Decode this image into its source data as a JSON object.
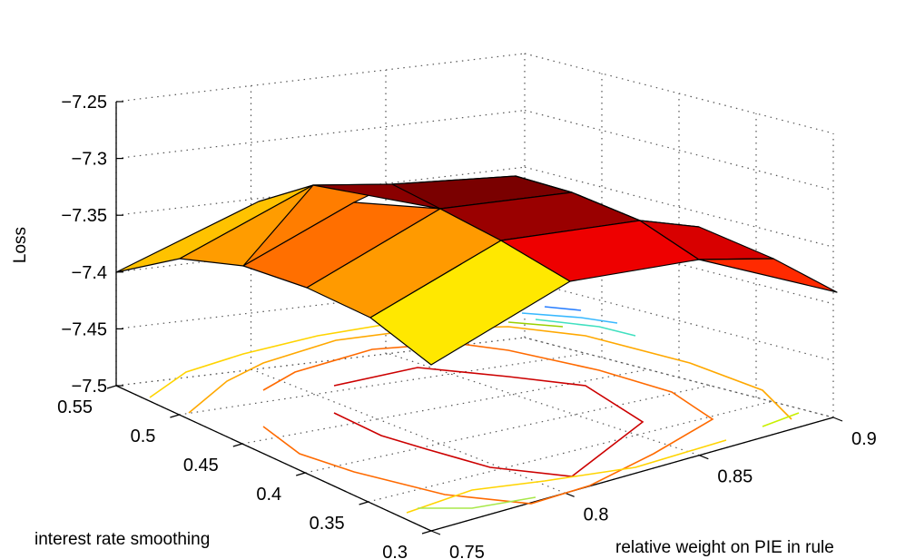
{
  "chart_data": {
    "type": "surface3d",
    "zlabel": "Loss",
    "xlabel": "interest rate smoothing",
    "ylabel": "relative weight on PIE in rule",
    "z_ticks": [
      "−7.25",
      "−7.3",
      "−7.35",
      "−7.4",
      "−7.45",
      "−7.5"
    ],
    "x_ticks": [
      "0.55",
      "0.5",
      "0.45",
      "0.4",
      "0.35",
      "0.3"
    ],
    "y_ticks": [
      "0.75",
      "0.8",
      "0.85",
      "0.9"
    ],
    "zlim": [
      -7.5,
      -7.25
    ],
    "grid": true,
    "colormap": "hot",
    "surface_rows": [
      {
        "label": "0.55",
        "values": [
          -7.4,
          -7.373,
          -7.365
        ]
      },
      {
        "label": "0.5",
        "values": [
          -7.385,
          -7.352,
          -7.342
        ]
      },
      {
        "label": "0.45",
        "values": [
          -7.392,
          -7.342,
          -7.333
        ]
      },
      {
        "label": "0.4",
        "values": [
          -7.405,
          -7.357,
          -7.358,
          -7.392
        ]
      },
      {
        "label": "0.35",
        "values": [
          -7.432,
          -7.387,
          -7.383,
          -7.405
        ]
      },
      {
        "label": "0.3",
        "values": [
          -7.476,
          -7.414,
          -7.4,
          -7.419
        ]
      }
    ],
    "contours_on_base": true
  }
}
